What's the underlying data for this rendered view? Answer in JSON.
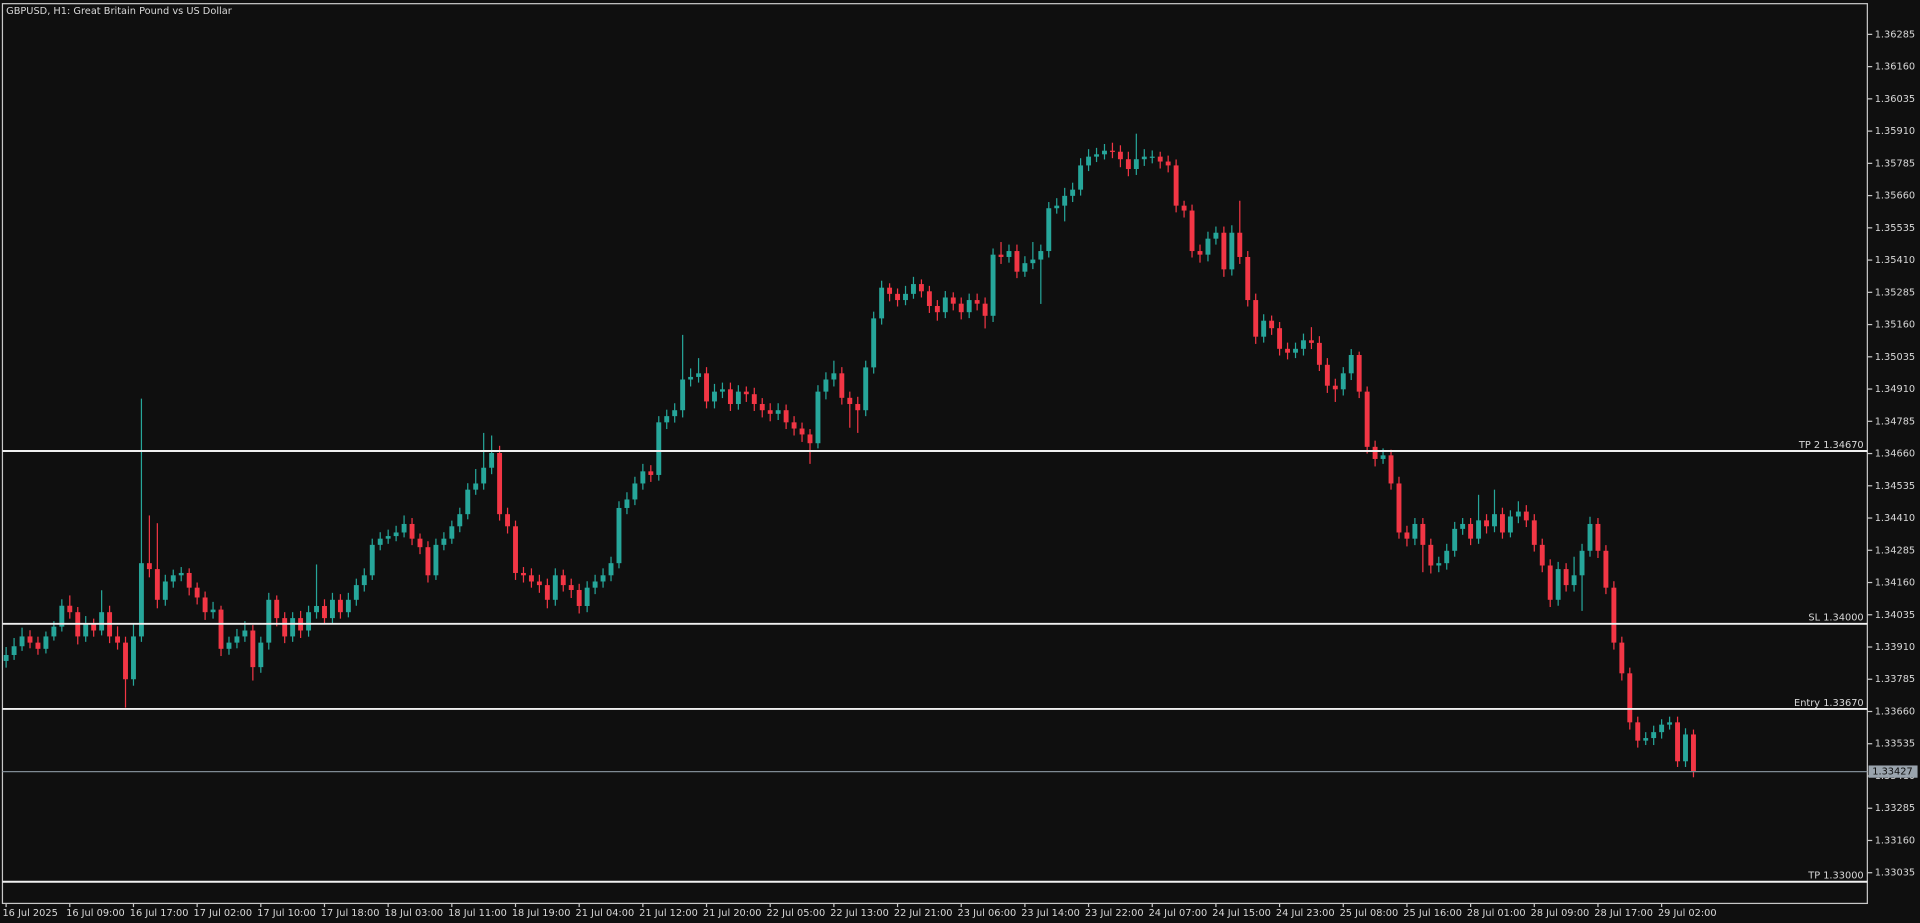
{
  "chart_data": {
    "type": "candlestick",
    "title": "GBPUSD, H1:  Great Britain Pound vs US Dollar",
    "up_color": "#26a69a",
    "down_color": "#f23645",
    "categories": [
      "16 Jul 2025",
      null,
      null,
      null,
      null,
      null,
      null,
      null,
      "16 Jul 09:00",
      null,
      null,
      null,
      null,
      null,
      null,
      null,
      "16 Jul 17:00",
      null,
      null,
      null,
      null,
      null,
      null,
      null,
      "17 Jul 02:00",
      null,
      null,
      null,
      null,
      null,
      null,
      null,
      "17 Jul 10:00",
      null,
      null,
      null,
      null,
      null,
      null,
      null,
      "17 Jul 18:00",
      null,
      null,
      null,
      null,
      null,
      null,
      null,
      "18 Jul 03:00",
      null,
      null,
      null,
      null,
      null,
      null,
      null,
      "18 Jul 11:00",
      null,
      null,
      null,
      null,
      null,
      null,
      null,
      "18 Jul 19:00",
      null,
      null,
      null,
      null,
      null,
      null,
      null,
      "21 Jul 04:00",
      null,
      null,
      null,
      null,
      null,
      null,
      null,
      "21 Jul 12:00",
      null,
      null,
      null,
      null,
      null,
      null,
      null,
      "21 Jul 20:00",
      null,
      null,
      null,
      null,
      null,
      null,
      null,
      "22 Jul 05:00",
      null,
      null,
      null,
      null,
      null,
      null,
      null,
      "22 Jul 13:00",
      null,
      null,
      null,
      null,
      null,
      null,
      null,
      "22 Jul 21:00",
      null,
      null,
      null,
      null,
      null,
      null,
      null,
      "23 Jul 06:00",
      null,
      null,
      null,
      null,
      null,
      null,
      null,
      "23 Jul 14:00",
      null,
      null,
      null,
      null,
      null,
      null,
      null,
      "23 Jul 22:00",
      null,
      null,
      null,
      null,
      null,
      null,
      null,
      "24 Jul 07:00",
      null,
      null,
      null,
      null,
      null,
      null,
      null,
      "24 Jul 15:00",
      null,
      null,
      null,
      null,
      null,
      null,
      null,
      "24 Jul 23:00",
      null,
      null,
      null,
      null,
      null,
      null,
      null,
      "25 Jul 08:00",
      null,
      null,
      null,
      null,
      null,
      null,
      null,
      "25 Jul 16:00",
      null,
      null,
      null,
      null,
      null,
      null,
      null,
      "28 Jul 01:00",
      null,
      null,
      null,
      null,
      null,
      null,
      null,
      "28 Jul 09:00",
      null,
      null,
      null,
      null,
      null,
      null,
      null,
      "28 Jul 17:00",
      null,
      null,
      null,
      null,
      null,
      null,
      null,
      "29 Jul 02:00",
      null,
      null,
      null,
      null
    ],
    "open": [
      1.33856,
      1.33879,
      1.33913,
      1.33951,
      1.33927,
      1.33903,
      1.33951,
      1.33989,
      1.3407,
      1.34045,
      1.33951,
      1.33998,
      1.33974,
      1.34045,
      1.33951,
      1.33927,
      1.33785,
      1.33951,
      1.34235,
      1.34212,
      1.34093,
      1.34164,
      1.34188,
      1.34197,
      1.3414,
      1.34102,
      1.34045,
      1.34055,
      1.33903,
      1.33927,
      1.33951,
      1.33974,
      1.33832,
      1.33927,
      1.34093,
      1.34022,
      1.33951,
      1.34022,
      1.33974,
      1.34045,
      1.34069,
      1.34022,
      1.34093,
      1.34045,
      1.34093,
      1.3415,
      1.34188,
      1.34306,
      1.3433,
      1.3434,
      1.34354,
      1.34387,
      1.3433,
      1.34297,
      1.34188,
      1.34306,
      1.3433,
      1.34378,
      1.34425,
      1.3452,
      1.34544,
      1.34605,
      1.34662,
      1.34425,
      1.34378,
      1.34197,
      1.34188,
      1.34164,
      1.3415,
      1.34093,
      1.34188,
      1.3415,
      1.34131,
      1.34069,
      1.3414,
      1.34164,
      1.34188,
      1.34235,
      1.34449,
      1.34482,
      1.34544,
      1.34591,
      1.34577,
      1.34781,
      1.34805,
      1.34828,
      1.34947,
      1.34957,
      1.34971,
      1.34862,
      1.349,
      1.34909,
      1.34852,
      1.349,
      1.3489,
      1.34852,
      1.34828,
      1.34814,
      1.34828,
      1.34781,
      1.34757,
      1.34734,
      1.347,
      1.349,
      1.34947,
      1.34971,
      1.34876,
      1.34852,
      1.34828,
      1.34994,
      1.35184,
      1.35303,
      1.35279,
      1.35255,
      1.35279,
      1.35317,
      1.35289,
      1.35232,
      1.35208,
      1.35265,
      1.35241,
      1.35208,
      1.35255,
      1.35241,
      1.35194,
      1.35431,
      1.35422,
      1.35445,
      1.35365,
      1.35398,
      1.35412,
      1.35445,
      1.35611,
      1.35621,
      1.35659,
      1.35683,
      1.35777,
      1.35811,
      1.3582,
      1.35834,
      1.3583,
      1.35801,
      1.35763,
      1.35801,
      1.35811,
      1.35811,
      1.35792,
      1.35777,
      1.35621,
      1.35602,
      1.35445,
      1.35431,
      1.35493,
      1.35516,
      1.35374,
      1.35516,
      1.35422,
      1.35255,
      1.35113,
      1.35175,
      1.35146,
      1.35066,
      1.35051,
      1.35066,
      1.35099,
      1.35089,
      1.35004,
      1.34923,
      1.34909,
      1.34971,
      1.35042,
      1.349,
      1.34686,
      1.34639,
      1.34653,
      1.34544,
      1.34354,
      1.3433,
      1.34387,
      1.34306,
      1.34226,
      1.34235,
      1.34283,
      1.34368,
      1.34387,
      1.3433,
      1.34401,
      1.34378,
      1.34425,
      1.34354,
      1.34416,
      1.34435,
      1.34401,
      1.34306,
      1.34226,
      1.34093,
      1.34212,
      1.3415,
      1.34188,
      1.34283,
      1.34387,
      1.34283,
      1.3414,
      1.33927,
      1.33808,
      1.33618,
      1.33547,
      1.33557,
      1.3358,
      1.33609,
      1.33618,
      1.33467,
      1.33571
    ],
    "high": [
      1.3391,
      1.33945,
      1.33985,
      1.33975,
      1.3395,
      1.3397,
      1.3401,
      1.34095,
      1.3411,
      1.34065,
      1.3403,
      1.3402,
      1.3413,
      1.3407,
      1.3399,
      1.3395,
      1.34,
      1.34873,
      1.3442,
      1.3439,
      1.3419,
      1.3421,
      1.3422,
      1.34215,
      1.3416,
      1.34125,
      1.34085,
      1.3407,
      1.3395,
      1.3398,
      1.3401,
      1.33995,
      1.3395,
      1.3412,
      1.3411,
      1.34045,
      1.34045,
      1.3405,
      1.3407,
      1.3423,
      1.34095,
      1.3412,
      1.34115,
      1.3412,
      1.34175,
      1.34215,
      1.3433,
      1.34355,
      1.34365,
      1.3438,
      1.3442,
      1.3441,
      1.3435,
      1.3432,
      1.3433,
      1.34355,
      1.344,
      1.3445,
      1.34545,
      1.346,
      1.3474,
      1.3473,
      1.3469,
      1.3445,
      1.344,
      1.3422,
      1.34215,
      1.3419,
      1.34175,
      1.34215,
      1.3421,
      1.34175,
      1.34155,
      1.34165,
      1.3419,
      1.34215,
      1.3426,
      1.34475,
      1.3451,
      1.3457,
      1.3462,
      1.34615,
      1.34805,
      1.3483,
      1.34855,
      1.3512,
      1.3499,
      1.3503,
      1.34995,
      1.3493,
      1.34935,
      1.34935,
      1.34925,
      1.3492,
      1.34915,
      1.34875,
      1.34855,
      1.34855,
      1.3485,
      1.34805,
      1.3478,
      1.34755,
      1.34925,
      1.34975,
      1.3502,
      1.34995,
      1.349,
      1.3488,
      1.3502,
      1.3521,
      1.3533,
      1.3532,
      1.353,
      1.3531,
      1.35345,
      1.35335,
      1.3531,
      1.35255,
      1.3529,
      1.35285,
      1.35265,
      1.3528,
      1.3528,
      1.35265,
      1.35455,
      1.3548,
      1.3547,
      1.3547,
      1.35425,
      1.3548,
      1.3547,
      1.35635,
      1.3565,
      1.3569,
      1.3571,
      1.35805,
      1.3584,
      1.35845,
      1.3586,
      1.35865,
      1.35855,
      1.3583,
      1.359,
      1.3584,
      1.35835,
      1.3583,
      1.35815,
      1.358,
      1.3564,
      1.35625,
      1.3547,
      1.3552,
      1.3554,
      1.3554,
      1.35545,
      1.3564,
      1.35445,
      1.3528,
      1.352,
      1.35195,
      1.3517,
      1.3509,
      1.3509,
      1.35125,
      1.3515,
      1.35115,
      1.3503,
      1.3495,
      1.34995,
      1.35065,
      1.35055,
      1.3492,
      1.3471,
      1.3468,
      1.34675,
      1.3457,
      1.3438,
      1.3441,
      1.3441,
      1.3433,
      1.3426,
      1.3431,
      1.34395,
      1.3441,
      1.3441,
      1.345,
      1.34425,
      1.3452,
      1.3445,
      1.3444,
      1.34475,
      1.3446,
      1.34425,
      1.3433,
      1.3425,
      1.3424,
      1.34235,
      1.3426,
      1.3431,
      1.34415,
      1.3441,
      1.34305,
      1.34165,
      1.3395,
      1.3383,
      1.3364,
      1.3358,
      1.33605,
      1.3363,
      1.3364,
      1.3364,
      1.33595,
      1.3359
    ],
    "low": [
      1.3383,
      1.3386,
      1.33895,
      1.33905,
      1.3388,
      1.33885,
      1.33935,
      1.3397,
      1.3402,
      1.3392,
      1.3393,
      1.3395,
      1.33955,
      1.33925,
      1.339,
      1.33675,
      1.3376,
      1.3393,
      1.3418,
      1.3406,
      1.3407,
      1.3414,
      1.34165,
      1.3411,
      1.34075,
      1.34015,
      1.3402,
      1.33875,
      1.3388,
      1.33905,
      1.3393,
      1.3378,
      1.3381,
      1.339,
      1.3399,
      1.33925,
      1.3393,
      1.33945,
      1.3395,
      1.3402,
      1.34,
      1.34,
      1.3402,
      1.34025,
      1.3407,
      1.34125,
      1.3417,
      1.34285,
      1.3431,
      1.3432,
      1.34335,
      1.34305,
      1.3427,
      1.3416,
      1.3417,
      1.34285,
      1.3431,
      1.34355,
      1.34405,
      1.345,
      1.3452,
      1.3458,
      1.344,
      1.3435,
      1.3417,
      1.3416,
      1.3414,
      1.3412,
      1.3406,
      1.3407,
      1.34125,
      1.341,
      1.3404,
      1.34045,
      1.34115,
      1.3414,
      1.34165,
      1.34215,
      1.34425,
      1.3446,
      1.3452,
      1.3455,
      1.34555,
      1.34755,
      1.3478,
      1.348,
      1.3492,
      1.34935,
      1.34835,
      1.34835,
      1.34875,
      1.34825,
      1.3483,
      1.3486,
      1.34825,
      1.348,
      1.34785,
      1.3479,
      1.34755,
      1.3473,
      1.34705,
      1.3462,
      1.3468,
      1.3487,
      1.3492,
      1.3485,
      1.3476,
      1.3474,
      1.34805,
      1.3497,
      1.3516,
      1.3525,
      1.3523,
      1.35235,
      1.3526,
      1.35265,
      1.35205,
      1.35175,
      1.35185,
      1.35215,
      1.3518,
      1.35185,
      1.35215,
      1.35145,
      1.3517,
      1.35395,
      1.354,
      1.3534,
      1.35345,
      1.35375,
      1.3524,
      1.3542,
      1.3559,
      1.3556,
      1.35635,
      1.3566,
      1.35755,
      1.3579,
      1.358,
      1.35805,
      1.3577,
      1.35735,
      1.3574,
      1.35775,
      1.35785,
      1.35765,
      1.3575,
      1.35595,
      1.35575,
      1.3542,
      1.354,
      1.35405,
      1.3547,
      1.35345,
      1.3535,
      1.35395,
      1.3523,
      1.35085,
      1.3509,
      1.3512,
      1.3504,
      1.35025,
      1.3503,
      1.3504,
      1.35065,
      1.3498,
      1.34895,
      1.3486,
      1.34885,
      1.34945,
      1.34875,
      1.3466,
      1.3461,
      1.3462,
      1.3452,
      1.3433,
      1.343,
      1.34305,
      1.342,
      1.34195,
      1.342,
      1.3421,
      1.3426,
      1.34345,
      1.34305,
      1.3431,
      1.3435,
      1.34355,
      1.3433,
      1.34335,
      1.3439,
      1.34375,
      1.3428,
      1.342,
      1.34065,
      1.3407,
      1.34125,
      1.34125,
      1.3405,
      1.3426,
      1.34255,
      1.34115,
      1.339,
      1.3378,
      1.3359,
      1.3352,
      1.3353,
      1.3353,
      1.33555,
      1.3359,
      1.33445,
      1.33445,
      1.33405
    ],
    "close": [
      1.33879,
      1.33913,
      1.33951,
      1.33927,
      1.33903,
      1.33951,
      1.33989,
      1.3407,
      1.34045,
      1.33951,
      1.33998,
      1.33974,
      1.34045,
      1.33951,
      1.33927,
      1.33785,
      1.33951,
      1.34235,
      1.34212,
      1.34093,
      1.34164,
      1.34188,
      1.34197,
      1.3414,
      1.34102,
      1.34045,
      1.34055,
      1.33903,
      1.33927,
      1.33951,
      1.33974,
      1.33832,
      1.33927,
      1.34093,
      1.34022,
      1.33951,
      1.34022,
      1.33974,
      1.34045,
      1.34069,
      1.34022,
      1.34093,
      1.34045,
      1.34093,
      1.3415,
      1.34188,
      1.34306,
      1.3433,
      1.3434,
      1.34354,
      1.34387,
      1.3433,
      1.34297,
      1.34188,
      1.34306,
      1.3433,
      1.34378,
      1.34425,
      1.3452,
      1.34544,
      1.34605,
      1.34662,
      1.34425,
      1.34378,
      1.34197,
      1.34188,
      1.34164,
      1.3415,
      1.34093,
      1.34188,
      1.3415,
      1.34131,
      1.34069,
      1.3414,
      1.34164,
      1.34188,
      1.34235,
      1.34449,
      1.34482,
      1.34544,
      1.34591,
      1.34577,
      1.34781,
      1.34805,
      1.34828,
      1.34947,
      1.34957,
      1.34971,
      1.34862,
      1.349,
      1.34909,
      1.34852,
      1.349,
      1.3489,
      1.34852,
      1.34828,
      1.34814,
      1.34828,
      1.34781,
      1.34757,
      1.34734,
      1.347,
      1.349,
      1.34947,
      1.34971,
      1.34876,
      1.34852,
      1.34828,
      1.34994,
      1.35184,
      1.35303,
      1.35279,
      1.35255,
      1.35279,
      1.35317,
      1.35289,
      1.35232,
      1.35208,
      1.35265,
      1.35241,
      1.35208,
      1.35255,
      1.35241,
      1.35194,
      1.35431,
      1.35422,
      1.35445,
      1.35365,
      1.35398,
      1.35412,
      1.35445,
      1.35611,
      1.35621,
      1.35659,
      1.35683,
      1.35777,
      1.35811,
      1.3582,
      1.35834,
      1.3583,
      1.35801,
      1.35763,
      1.35801,
      1.35811,
      1.35811,
      1.35792,
      1.35777,
      1.35621,
      1.35602,
      1.35445,
      1.35431,
      1.35493,
      1.35516,
      1.35374,
      1.35516,
      1.35422,
      1.35255,
      1.35113,
      1.35175,
      1.35146,
      1.35066,
      1.35051,
      1.35066,
      1.35099,
      1.35089,
      1.35004,
      1.34923,
      1.34909,
      1.34971,
      1.35042,
      1.349,
      1.34686,
      1.34639,
      1.34653,
      1.34544,
      1.34354,
      1.3433,
      1.34387,
      1.34306,
      1.34226,
      1.34235,
      1.34283,
      1.34368,
      1.34387,
      1.3433,
      1.34401,
      1.34378,
      1.34425,
      1.34354,
      1.34416,
      1.34435,
      1.34401,
      1.34306,
      1.34226,
      1.34093,
      1.34212,
      1.3415,
      1.34188,
      1.34283,
      1.34387,
      1.34283,
      1.3414,
      1.33927,
      1.33808,
      1.33618,
      1.33547,
      1.33557,
      1.3358,
      1.33609,
      1.33618,
      1.33467,
      1.33571,
      1.33427
    ],
    "ylim": [
      1.32916,
      1.36404
    ],
    "yticks": [
      1.36285,
      {
        "value": 1.3616,
        "label": "1.36160"
      },
      1.36035,
      {
        "value": 1.3591,
        "label": "1.35910"
      },
      1.35785,
      {
        "value": 1.3566,
        "label": "1.35660"
      },
      1.35535,
      {
        "value": 1.3541,
        "label": "1.35410"
      },
      1.35285,
      {
        "value": 1.3516,
        "label": "1.35160"
      },
      1.35035,
      {
        "value": 1.3491,
        "label": "1.34910"
      },
      1.34785,
      {
        "value": 1.3466,
        "label": "1.34660"
      },
      1.34535,
      {
        "value": 1.3441,
        "label": "1.34410"
      },
      1.34285,
      {
        "value": 1.3416,
        "label": "1.34160"
      },
      1.34035,
      {
        "value": 1.3391,
        "label": "1.33910"
      },
      1.33785,
      {
        "value": 1.3366,
        "label": "1.33660"
      },
      1.33535,
      {
        "value": 1.3341,
        "label": "1.33410"
      },
      1.33285,
      {
        "value": 1.3316,
        "label": "1.33160"
      },
      1.33035
    ],
    "levels": [
      {
        "label": "TP 2 1.34670",
        "value": 1.3467
      },
      {
        "label": "SL 1.34000",
        "value": 1.34
      },
      {
        "label": "Entry 1.33670",
        "value": 1.3367
      },
      {
        "label": "TP 1.33000",
        "value": 1.33
      }
    ],
    "last_price": 1.33427,
    "grid": false
  }
}
